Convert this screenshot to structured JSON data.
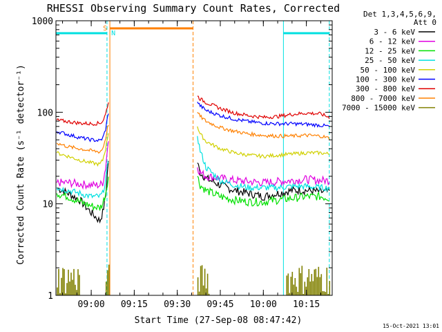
{
  "chart_data": {
    "type": "line",
    "title": "RHESSI Observing Summary Count Rates, Corrected",
    "xlabel": "Start Time (27-Sep-08 08:47:42)",
    "ylabel": "Corrected Count Rate (s⁻¹ detector⁻¹)",
    "yscale": "log",
    "ylim": [
      1,
      1000
    ],
    "xlim": [
      "08:47:42",
      "10:24:00"
    ],
    "x_ticks": [
      "09:00",
      "09:15",
      "09:30",
      "09:45",
      "10:00",
      "10:15"
    ],
    "y_ticks": [
      "1",
      "10",
      "100",
      "1000"
    ],
    "grid": false,
    "legend": {
      "placement": "right",
      "header": [
        "Det 1,3,4,5,6,9,",
        "Att 0"
      ]
    },
    "series": [
      {
        "name": "3 - 6 keV",
        "color": "#000000",
        "x": [
          "08:48",
          "08:52",
          "08:56",
          "09:00",
          "09:03",
          "09:04",
          "09:05",
          "09:06",
          "09:37",
          "09:38",
          "09:40",
          "09:45",
          "09:50",
          "09:55",
          "10:00",
          "10:05",
          "10:10",
          "10:15",
          "10:20",
          "10:23"
        ],
        "y": [
          15,
          13,
          11,
          8,
          6.5,
          8,
          12,
          30,
          28,
          22,
          19,
          16,
          14,
          13,
          12,
          13,
          14,
          14,
          13.5,
          13.5
        ]
      },
      {
        "name": "6 - 12 keV",
        "color": "#e000e0",
        "x": [
          "08:48",
          "08:52",
          "08:56",
          "09:00",
          "09:03",
          "09:04",
          "09:05",
          "09:06",
          "09:37",
          "09:38",
          "09:40",
          "09:45",
          "09:50",
          "09:55",
          "10:00",
          "10:05",
          "10:10",
          "10:15",
          "10:20",
          "10:23"
        ],
        "y": [
          17,
          17,
          16.5,
          16,
          16,
          17,
          25,
          50,
          25,
          22,
          20,
          19,
          18,
          17.5,
          17,
          17.5,
          18,
          18.5,
          18,
          18
        ]
      },
      {
        "name": "12 - 25 keV",
        "color": "#00e000",
        "x": [
          "08:48",
          "08:52",
          "08:56",
          "09:00",
          "09:03",
          "09:04",
          "09:05",
          "09:06",
          "09:37",
          "09:38",
          "09:40",
          "09:45",
          "09:50",
          "09:55",
          "10:00",
          "10:05",
          "10:10",
          "10:15",
          "10:20",
          "10:23"
        ],
        "y": [
          13,
          12,
          10.5,
          9.5,
          9,
          10,
          13,
          20,
          20,
          16,
          14,
          12,
          11,
          10.5,
          10.5,
          11,
          11.5,
          12,
          12,
          11.5
        ]
      },
      {
        "name": "25 - 50 keV",
        "color": "#00e0e0",
        "x": [
          "08:48",
          "08:52",
          "08:56",
          "09:00",
          "09:03",
          "09:04",
          "09:05",
          "09:06",
          "09:37",
          "09:38",
          "09:40",
          "09:45",
          "09:50",
          "09:55",
          "10:00",
          "10:05",
          "10:10",
          "10:15",
          "10:20",
          "10:23"
        ],
        "y": [
          15,
          14,
          13,
          12,
          12,
          13,
          18,
          30,
          55,
          38,
          25,
          18,
          16,
          15,
          15,
          15,
          15.5,
          15.5,
          15,
          15
        ]
      },
      {
        "name": "50 - 100 keV",
        "color": "#d0d000",
        "x": [
          "08:48",
          "08:52",
          "08:56",
          "09:00",
          "09:03",
          "09:04",
          "09:05",
          "09:06",
          "09:37",
          "09:38",
          "09:40",
          "09:45",
          "09:50",
          "09:55",
          "10:00",
          "10:05",
          "10:10",
          "10:15",
          "10:20",
          "10:23"
        ],
        "y": [
          36,
          33,
          30,
          28,
          27,
          30,
          40,
          60,
          70,
          58,
          48,
          40,
          36,
          34,
          33,
          34,
          35,
          36,
          36,
          35
        ]
      },
      {
        "name": "100 - 300 keV",
        "color": "#0000ff",
        "x": [
          "08:48",
          "08:52",
          "08:56",
          "09:00",
          "09:03",
          "09:04",
          "09:05",
          "09:06",
          "09:37",
          "09:38",
          "09:40",
          "09:45",
          "09:50",
          "09:55",
          "10:00",
          "10:05",
          "10:10",
          "10:15",
          "10:20",
          "10:23"
        ],
        "y": [
          62,
          57,
          53,
          50,
          49,
          52,
          65,
          100,
          130,
          118,
          105,
          92,
          84,
          79,
          76,
          75,
          75,
          74,
          72,
          70
        ]
      },
      {
        "name": "300 - 800 keV",
        "color": "#e00000",
        "x": [
          "08:48",
          "08:52",
          "08:56",
          "09:00",
          "09:03",
          "09:04",
          "09:05",
          "09:06",
          "09:37",
          "09:38",
          "09:40",
          "09:45",
          "09:50",
          "09:55",
          "10:00",
          "10:05",
          "10:10",
          "10:15",
          "10:20",
          "10:23"
        ],
        "y": [
          82,
          79,
          76,
          75,
          76,
          80,
          95,
          130,
          150,
          140,
          128,
          110,
          98,
          92,
          88,
          90,
          95,
          98,
          96,
          88
        ]
      },
      {
        "name": "800 - 7000 keV",
        "color": "#ff8000",
        "x": [
          "08:48",
          "08:52",
          "08:56",
          "09:00",
          "09:03",
          "09:04",
          "09:05",
          "09:06",
          "09:37",
          "09:38",
          "09:40",
          "09:45",
          "09:50",
          "09:55",
          "10:00",
          "10:05",
          "10:10",
          "10:15",
          "10:20",
          "10:23"
        ],
        "y": [
          46,
          42,
          40,
          38,
          37,
          40,
          52,
          75,
          100,
          90,
          80,
          68,
          62,
          58,
          56,
          55,
          55,
          56,
          55,
          52
        ]
      },
      {
        "name": "7000 - 15000 keV",
        "color": "#808000",
        "x": [
          "08:48",
          "08:51",
          "08:52",
          "08:54",
          "08:56",
          "09:05",
          "09:06",
          "09:37",
          "09:38",
          "09:39",
          "09:40",
          "09:41",
          "10:08",
          "10:10",
          "10:13",
          "10:16",
          "10:19",
          "10:21",
          "10:23"
        ],
        "y": [
          2,
          1.3,
          1.8,
          1.2,
          2,
          1.4,
          2,
          3,
          2,
          1.4,
          2,
          1.2,
          1.3,
          2,
          1.5,
          2,
          1.3,
          2,
          1.6
        ]
      }
    ],
    "markers": {
      "night_intervals": [
        [
          "08:47:42",
          "09:05:30"
        ],
        [
          "10:07:00",
          "10:23:00"
        ]
      ],
      "saa_interval": [
        "09:06:30",
        "09:35:30"
      ],
      "saa_label": "S",
      "night_label": "N"
    }
  },
  "stamp": "15-Oct-2021 13:01"
}
